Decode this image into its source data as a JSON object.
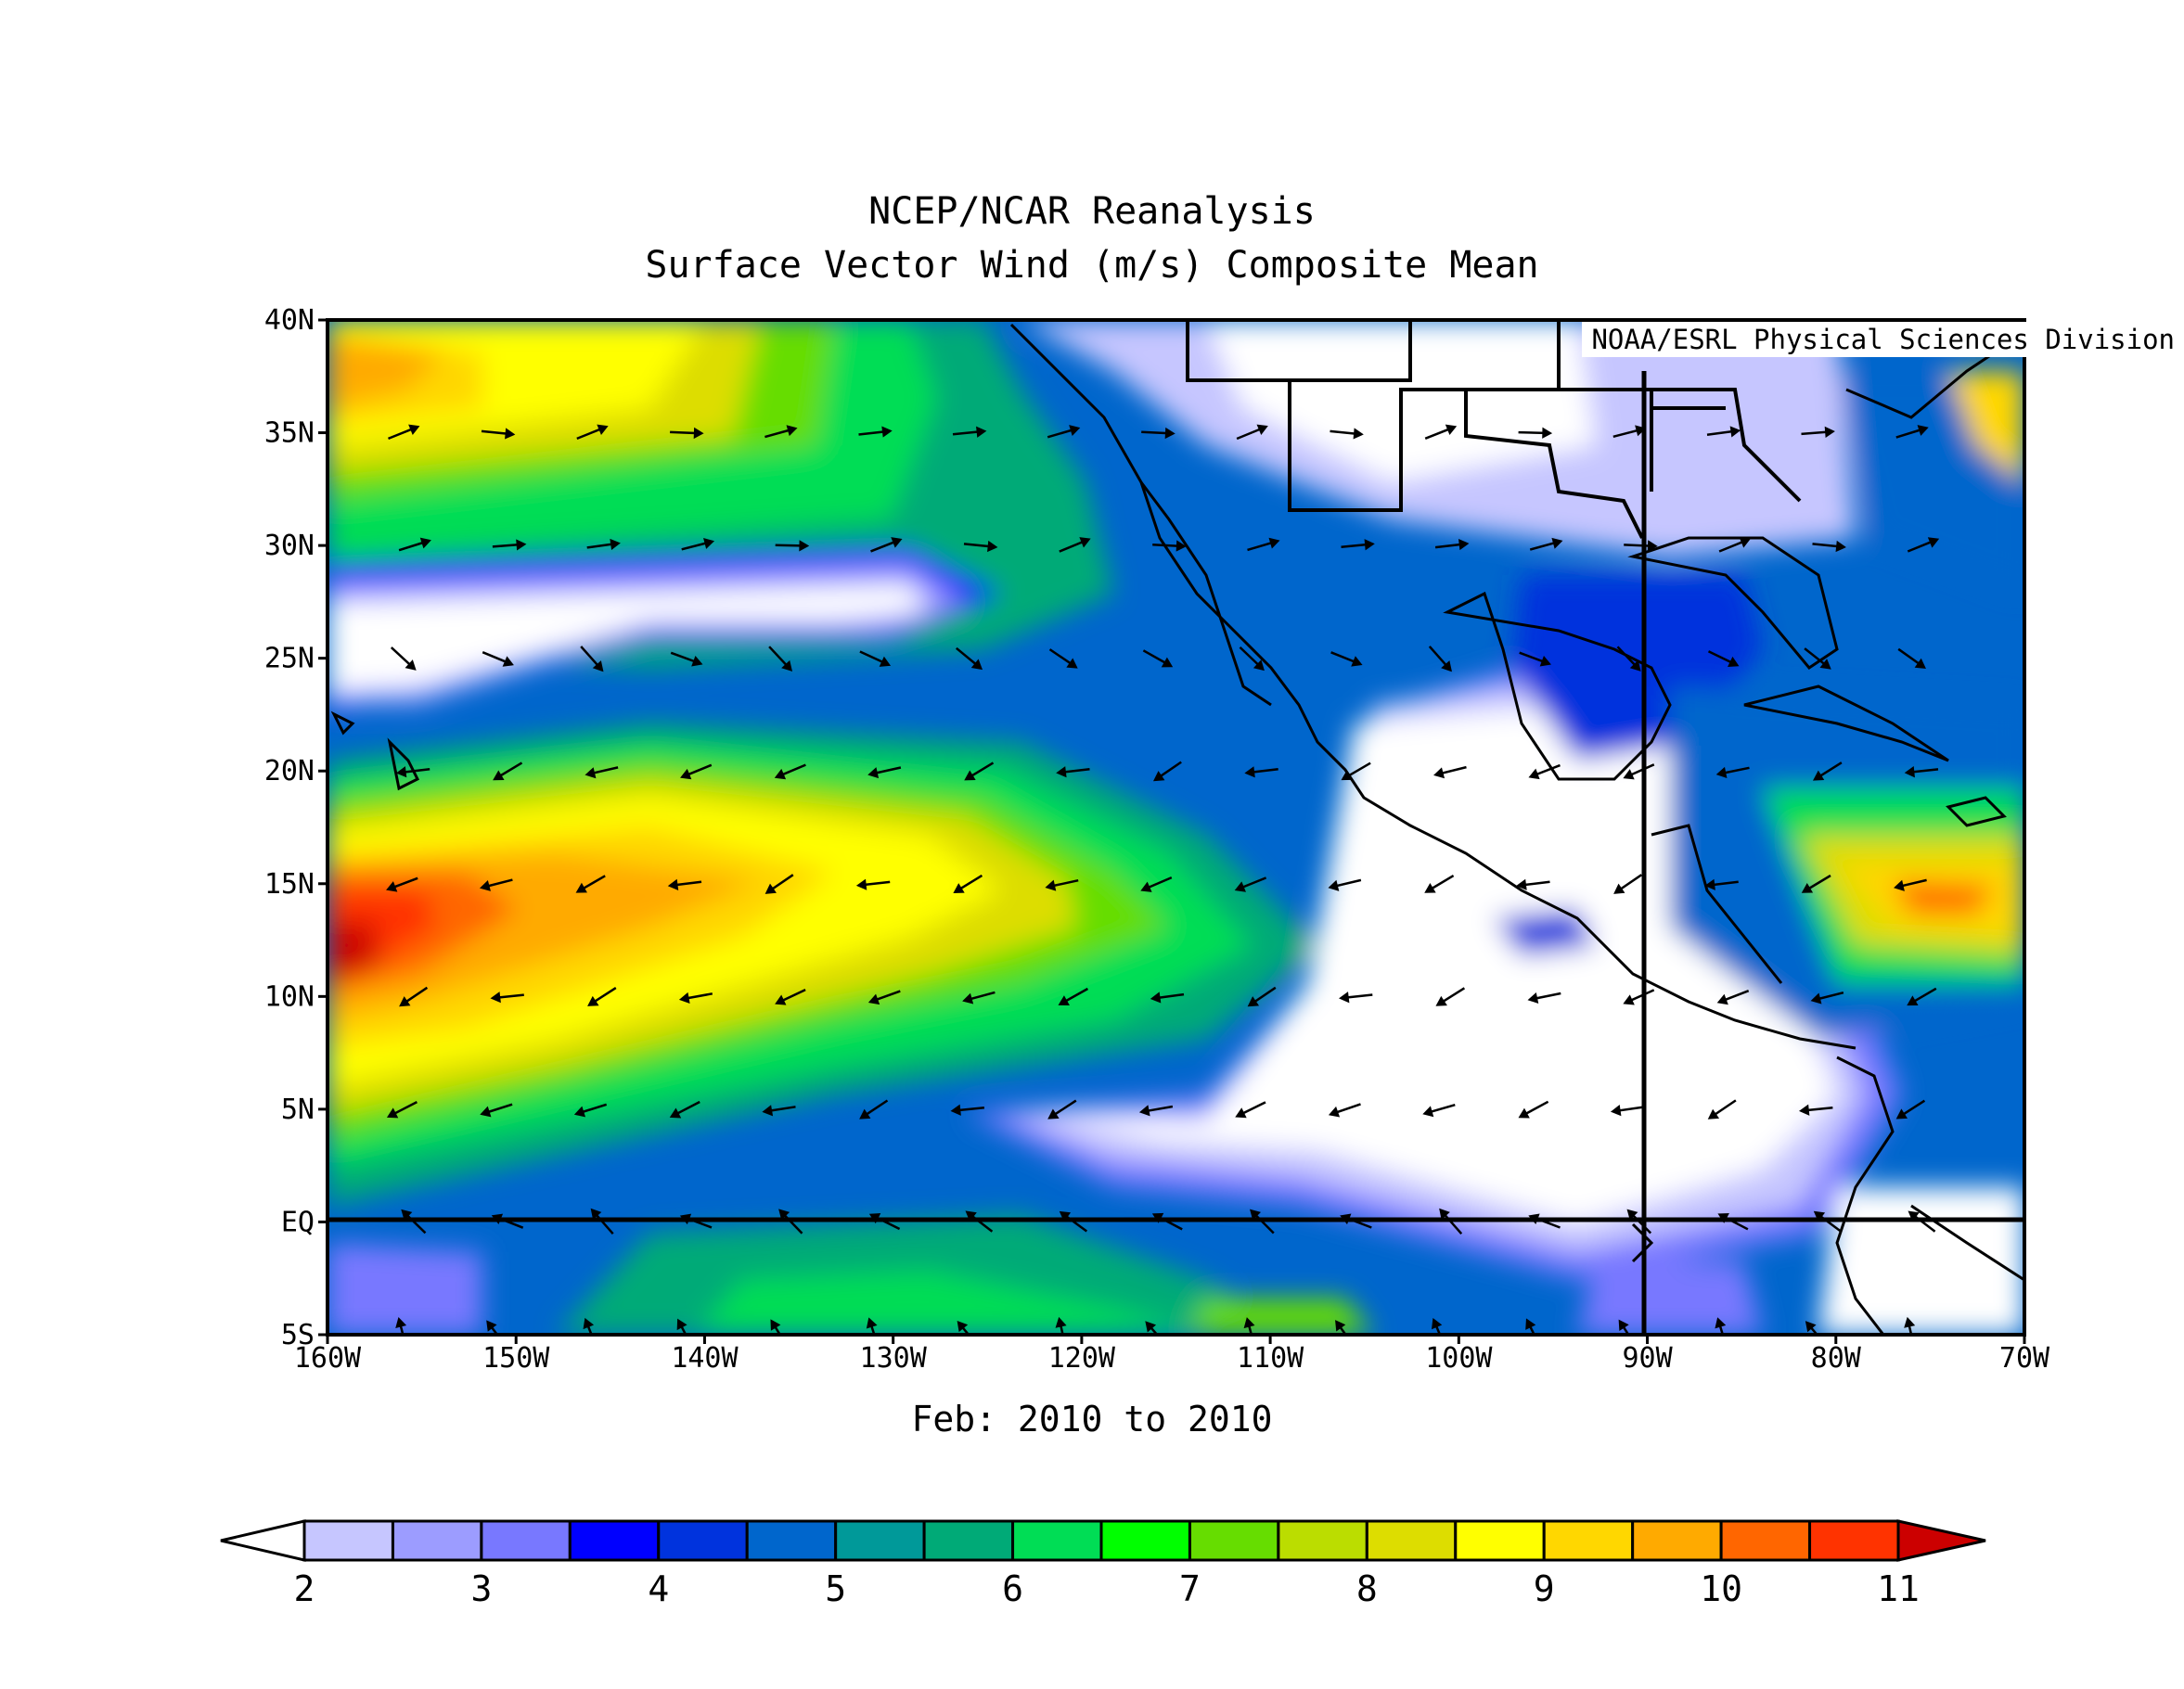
{
  "title": "NCEP/NCAR Reanalysis",
  "subtitle": "Surface Vector Wind (m/s) Composite Mean",
  "credit": "NOAA/ESRL Physical Sciences Division",
  "period": "Feb: 2010 to 2010",
  "lat_labels": [
    "40N",
    "35N",
    "30N",
    "25N",
    "20N",
    "15N",
    "10N",
    "5N",
    "EQ",
    "5S"
  ],
  "lon_labels": [
    "160W",
    "150W",
    "140W",
    "130W",
    "120W",
    "110W",
    "100W",
    "90W",
    "80W",
    "70W"
  ],
  "colorbar": {
    "colors": [
      "#ffffff",
      "#c6c6ff",
      "#9c9cff",
      "#7878ff",
      "#0000ff",
      "#0033dd",
      "#0066cc",
      "#009999",
      "#00aa77",
      "#00dd55",
      "#00ff00",
      "#66dd00",
      "#bbdd00",
      "#dddd00",
      "#ffff00",
      "#ffd700",
      "#ffaa00",
      "#ff6600",
      "#ff3300",
      "#cc0000"
    ],
    "labels": [
      "2",
      "3",
      "4",
      "5",
      "6",
      "7",
      "8",
      "9",
      "10",
      "11"
    ]
  },
  "chart_data": {
    "type": "heatmap",
    "variable": "Surface Vector Wind (m/s) Composite Mean",
    "source": "NCEP/NCAR Reanalysis",
    "period": "Feb: 2010 to 2010",
    "lon_range": [
      -160,
      -70
    ],
    "lat_range": [
      -5,
      40
    ],
    "colorbar_range": [
      2,
      11
    ],
    "colorbar_ticks": [
      2,
      3,
      4,
      5,
      6,
      7,
      8,
      9,
      10,
      11
    ],
    "features": [
      {
        "lon": -157,
        "lat": 11,
        "value": 11
      },
      {
        "lon": -150,
        "lat": 13,
        "value": 10
      },
      {
        "lon": -138,
        "lat": 13,
        "value": 9.5
      },
      {
        "lon": -125,
        "lat": 14,
        "value": 8.5
      },
      {
        "lon": -148,
        "lat": 35,
        "value": 9
      },
      {
        "lon": -157,
        "lat": 37,
        "value": 10
      },
      {
        "lon": -135,
        "lat": 27,
        "value": 2
      },
      {
        "lon": -115,
        "lat": 15,
        "value": 6
      },
      {
        "lon": -100,
        "lat": 8,
        "value": 2
      },
      {
        "lon": -95,
        "lat": 12,
        "value": 4
      },
      {
        "lon": -90,
        "lat": 27,
        "value": 4
      },
      {
        "lon": -76,
        "lat": 13,
        "value": 10
      }
    ]
  }
}
